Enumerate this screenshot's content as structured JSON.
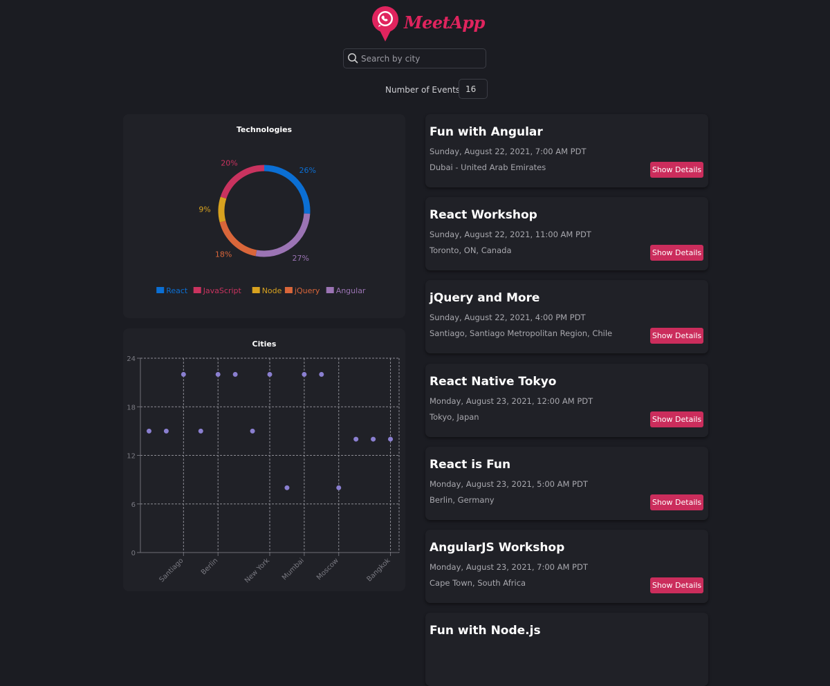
{
  "app": {
    "brand": "MeetApp",
    "brand_color": "#e0245e"
  },
  "search": {
    "placeholder": "Search by city",
    "value": "",
    "icon": "search-icon"
  },
  "number_of_events": {
    "label": "Number of Events",
    "value": "16"
  },
  "colors": {
    "accent": "#cb2d5c",
    "background": "#1b1c22",
    "panel": "#202127",
    "scatter_point": "#8a7fd0"
  },
  "chart_data": [
    {
      "type": "pie",
      "title": "Technologies",
      "donut": true,
      "legend_position": "bottom",
      "slices": [
        {
          "name": "React",
          "value": 26,
          "label": "26%",
          "color": "#0b6fd4"
        },
        {
          "name": "Angular",
          "value": 27,
          "label": "27%",
          "color": "#9b74b4"
        },
        {
          "name": "jQuery",
          "value": 18,
          "label": "18%",
          "color": "#d9663a"
        },
        {
          "name": "Node",
          "value": 9,
          "label": "9%",
          "color": "#d8a21f"
        },
        {
          "name": "JavaScript",
          "value": 20,
          "label": "20%",
          "color": "#c9335f"
        }
      ],
      "legend": [
        {
          "name": "React",
          "color": "#0b6fd4"
        },
        {
          "name": "JavaScript",
          "color": "#c9335f"
        },
        {
          "name": "Node",
          "color": "#d8a21f"
        },
        {
          "name": "jQuery",
          "color": "#d9663a"
        },
        {
          "name": "Angular",
          "color": "#9b74b4"
        }
      ]
    },
    {
      "type": "scatter",
      "title": "Cities",
      "ylim": [
        0,
        24
      ],
      "yticks": [
        "0",
        "6",
        "12",
        "18",
        "24"
      ],
      "grid": true,
      "x_tick_labels": [
        {
          "index": 2,
          "text": "Santiago"
        },
        {
          "index": 4,
          "text": "Berlin"
        },
        {
          "index": 7,
          "text": "New York"
        },
        {
          "index": 9,
          "text": "Mumbai"
        },
        {
          "index": 11,
          "text": "Moscow"
        },
        {
          "index": 14,
          "text": "Bangkok"
        }
      ],
      "points": [
        15,
        15,
        22,
        15,
        22,
        22,
        15,
        22,
        8,
        22,
        22,
        8,
        14,
        14,
        14
      ]
    }
  ],
  "events": [
    {
      "title": "Fun with Angular",
      "date": "Sunday, August 22, 2021, 7:00 AM PDT",
      "location": "Dubai - United Arab Emirates",
      "button": "Show Details"
    },
    {
      "title": "React Workshop",
      "date": "Sunday, August 22, 2021, 11:00 AM PDT",
      "location": "Toronto, ON, Canada",
      "button": "Show Details"
    },
    {
      "title": "jQuery and More",
      "date": "Sunday, August 22, 2021, 4:00 PM PDT",
      "location": "Santiago, Santiago Metropolitan Region, Chile",
      "button": "Show Details"
    },
    {
      "title": "React Native Tokyo",
      "date": "Monday, August 23, 2021, 12:00 AM PDT",
      "location": "Tokyo, Japan",
      "button": "Show Details"
    },
    {
      "title": "React is Fun",
      "date": "Monday, August 23, 2021, 5:00 AM PDT",
      "location": "Berlin, Germany",
      "button": "Show Details"
    },
    {
      "title": "AngularJS Workshop",
      "date": "Monday, August 23, 2021, 7:00 AM PDT",
      "location": "Cape Town, South Africa",
      "button": "Show Details"
    },
    {
      "title": "Fun with Node.js",
      "date": "",
      "location": "",
      "button": ""
    }
  ]
}
